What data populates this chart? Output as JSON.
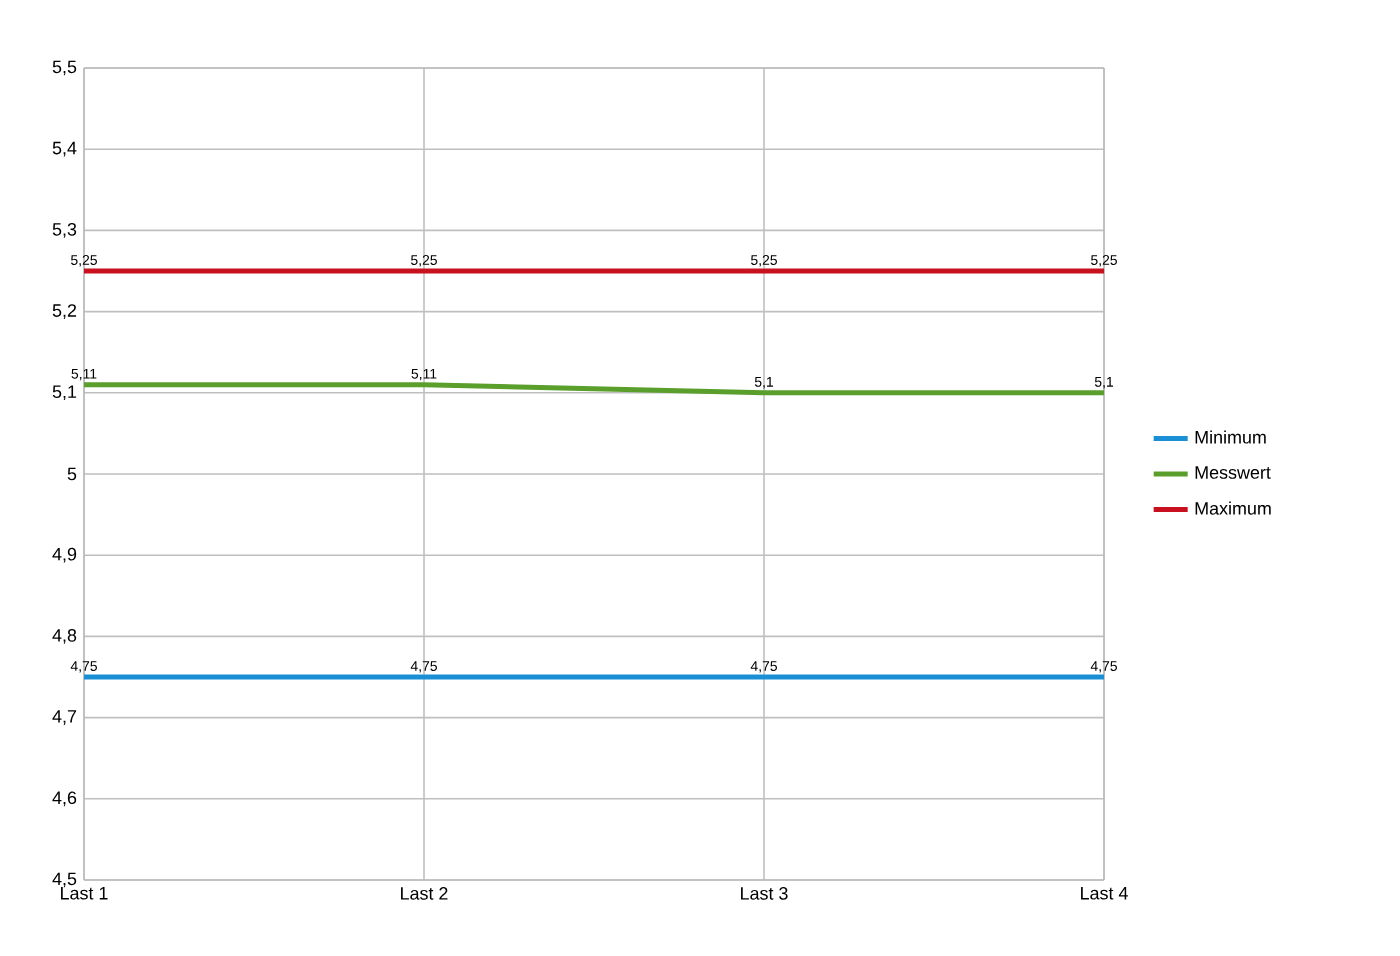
{
  "chart_data": {
    "type": "line",
    "categories": [
      "Last 1",
      "Last 2",
      "Last 3",
      "Last 4"
    ],
    "series": [
      {
        "name": "Minimum",
        "color": "#1a8fd6",
        "values": [
          4.75,
          4.75,
          4.75,
          4.75
        ],
        "value_labels": [
          "4,75",
          "4,75",
          "4,75",
          "4,75"
        ]
      },
      {
        "name": "Messwert",
        "color": "#5a9e2c",
        "values": [
          5.11,
          5.11,
          5.1,
          5.1
        ],
        "value_labels": [
          "5,11",
          "5,11",
          "5,1",
          "5,1"
        ]
      },
      {
        "name": "Maximum",
        "color": "#c8101e",
        "values": [
          5.25,
          5.25,
          5.25,
          5.25
        ],
        "value_labels": [
          "5,25",
          "5,25",
          "5,25",
          "5,25"
        ]
      }
    ],
    "ylim": [
      4.5,
      5.5
    ],
    "yticks": [
      {
        "value": 4.5,
        "label": "4,5"
      },
      {
        "value": 4.6,
        "label": "4,6"
      },
      {
        "value": 4.7,
        "label": "4,7"
      },
      {
        "value": 4.8,
        "label": "4,8"
      },
      {
        "value": 4.9,
        "label": "4,9"
      },
      5,
      {
        "value": 5.1,
        "label": "5,1"
      },
      {
        "value": 5.2,
        "label": "5,2"
      },
      {
        "value": 5.3,
        "label": "5,3"
      },
      {
        "value": 5.4,
        "label": "5,4"
      },
      {
        "value": 5.5,
        "label": "5,5"
      }
    ],
    "grid": true,
    "legend": "right",
    "marker": "none",
    "line_style": "solid"
  }
}
